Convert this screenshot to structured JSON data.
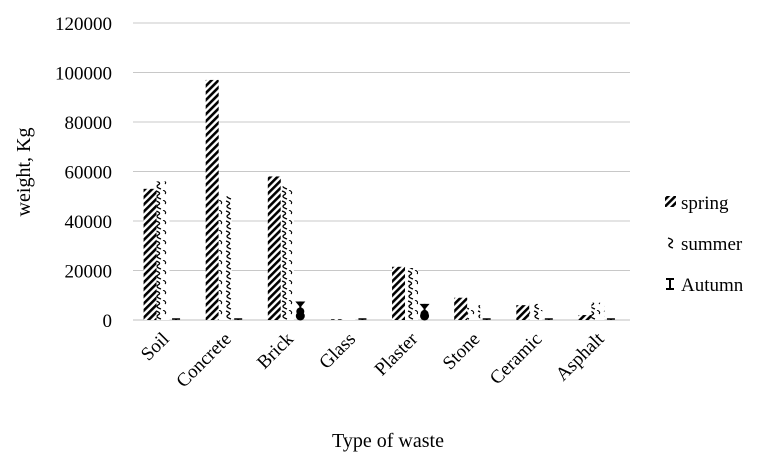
{
  "chart_data": {
    "type": "bar",
    "xlabel": "Type of waste",
    "ylabel": "weight, Kg",
    "ylim": [
      0,
      120000
    ],
    "yticks": [
      "0",
      "20000",
      "40000",
      "60000",
      "80000",
      "100000",
      "120000"
    ],
    "grid": "horizontal",
    "legend_position": "right",
    "categories": [
      "Soil",
      "Concrete",
      "Brick",
      "Glass",
      "Plaster",
      "Stone",
      "Ceramic",
      "Asphalt"
    ],
    "series": [
      {
        "name": "spring",
        "pattern": "diagonal-stripes",
        "values": [
          53000,
          97000,
          58000,
          300,
          21500,
          9000,
          6000,
          2000
        ]
      },
      {
        "name": "summer",
        "pattern": "wave",
        "values": [
          56000,
          50000,
          54000,
          300,
          21000,
          6000,
          6500,
          7000
        ]
      },
      {
        "name": "Autumn",
        "pattern": "error-bar",
        "values": [
          500,
          500,
          7500,
          200,
          6500,
          500,
          500,
          500
        ]
      }
    ],
    "colors": {
      "ink": "#000000",
      "grid": "#c8c8c8",
      "background": "#ffffff"
    }
  }
}
